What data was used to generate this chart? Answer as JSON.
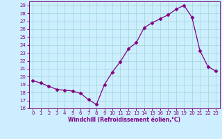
{
  "x": [
    0,
    1,
    2,
    3,
    4,
    5,
    6,
    7,
    8,
    9,
    10,
    11,
    12,
    13,
    14,
    15,
    16,
    17,
    18,
    19,
    20,
    21,
    22,
    23
  ],
  "y": [
    19.5,
    19.2,
    18.8,
    18.4,
    18.3,
    18.2,
    17.9,
    17.1,
    16.5,
    19.0,
    20.6,
    21.9,
    23.5,
    24.3,
    26.2,
    26.8,
    27.3,
    27.8,
    28.5,
    29.0,
    27.5,
    23.3,
    21.3,
    20.7
  ],
  "line_color": "#800080",
  "marker": "D",
  "marker_size": 2.5,
  "bg_color": "#cceeff",
  "grid_color": "#aadddd",
  "xlabel": "Windchill (Refroidissement éolien,°C)",
  "xlim": [
    -0.5,
    23.5
  ],
  "ylim": [
    16,
    29.5
  ],
  "yticks": [
    16,
    17,
    18,
    19,
    20,
    21,
    22,
    23,
    24,
    25,
    26,
    27,
    28,
    29
  ],
  "xticks": [
    0,
    1,
    2,
    3,
    4,
    5,
    6,
    7,
    8,
    9,
    10,
    11,
    12,
    13,
    14,
    15,
    16,
    17,
    18,
    19,
    20,
    21,
    22,
    23
  ]
}
